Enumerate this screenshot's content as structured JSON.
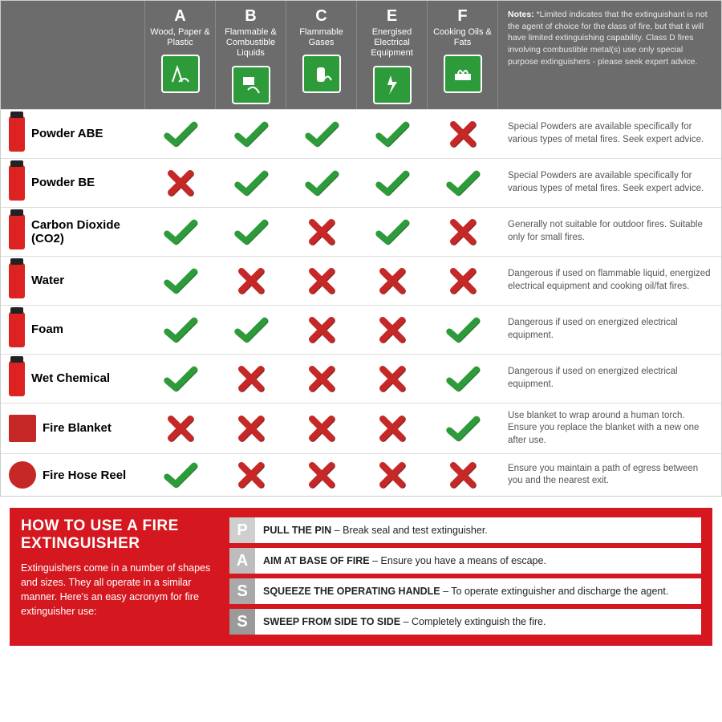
{
  "colors": {
    "header_bg": "#6c6c6c",
    "icon_green": "#2e9b3a",
    "alt_row_bg": "#f7dccb",
    "grey_row_bg": "#e0e0e0",
    "check_color": "#2e9b3a",
    "cross_color": "#c62828",
    "pass_red": "#d5181f"
  },
  "columns": [
    {
      "letter": "A",
      "label": "Wood, Paper & Plastic"
    },
    {
      "letter": "B",
      "label": "Flammable & Combustible Liquids"
    },
    {
      "letter": "C",
      "label": "Flammable Gases"
    },
    {
      "letter": "E",
      "label": "Energised Electrical Equipment"
    },
    {
      "letter": "F",
      "label": "Cooking Oils & Fats"
    }
  ],
  "notes_header": {
    "title": "Notes:",
    "body": "*Limited indicates that the extinguishant is not the agent of choice for the class of fire, but that it will have limited extinguishing capability. Class D fires involving combustible metal(s) use only special purpose extinguishers - please seek expert advice."
  },
  "rows": [
    {
      "name": "Powder ABE",
      "style": "",
      "cells": [
        "y",
        "y",
        "y",
        "y",
        "n"
      ],
      "note": "Special Powders are available specifically for various types of metal fires. Seek expert advice."
    },
    {
      "name": "Powder BE",
      "style": "alt",
      "cells": [
        "n",
        "y",
        "y",
        "y",
        "y"
      ],
      "note": "Special Powders are available specifically for various types of metal fires. Seek expert advice."
    },
    {
      "name": "Carbon Dioxide (CO2)",
      "style": "",
      "cells": [
        "y",
        "y",
        "n",
        "y",
        "n"
      ],
      "note": "Generally not suitable for outdoor fires. Suitable only for small fires."
    },
    {
      "name": "Water",
      "style": "alt",
      "cells": [
        "y",
        "n",
        "n",
        "n",
        "n"
      ],
      "note": "Dangerous if used on flammable liquid, energized electrical equipment and cooking oil/fat fires."
    },
    {
      "name": "Foam",
      "style": "",
      "cells": [
        "y",
        "y",
        "n",
        "n",
        "y"
      ],
      "note": "Dangerous if used on energized electrical equipment."
    },
    {
      "name": "Wet Chemical",
      "style": "alt",
      "cells": [
        "y",
        "n",
        "n",
        "n",
        "y"
      ],
      "note": "Dangerous if used on energized electrical equipment."
    },
    {
      "name": "Fire Blanket",
      "style": "gr",
      "icon": "blanket",
      "cells": [
        "n",
        "n",
        "n",
        "n",
        "y"
      ],
      "note": "Use blanket to wrap around a human torch. Ensure you replace the blanket with a new one after use."
    },
    {
      "name": "Fire Hose Reel",
      "style": "gr",
      "icon": "reel",
      "cells": [
        "y",
        "n",
        "n",
        "n",
        "n"
      ],
      "note": "Ensure you maintain a path of egress between you and the nearest exit."
    }
  ],
  "pass": {
    "title": "HOW TO USE A FIRE EXTINGUISHER",
    "intro": "Extinguishers come in a number of shapes and sizes. They all operate in a similar manner. Here's an easy acronym for fire extinguisher use:",
    "steps": [
      {
        "letter": "P",
        "bold": "PULL THE PIN",
        "rest": " – Break seal and test extinguisher."
      },
      {
        "letter": "A",
        "bold": "AIM AT BASE OF FIRE",
        "rest": " – Ensure you have a means of escape."
      },
      {
        "letter": "S",
        "bold": "SQUEEZE THE OPERATING HANDLE",
        "rest": " – To operate extinguisher and discharge the agent."
      },
      {
        "letter": "S",
        "bold": "SWEEP FROM SIDE TO SIDE",
        "rest": " – Completely extinguish the fire."
      }
    ]
  }
}
